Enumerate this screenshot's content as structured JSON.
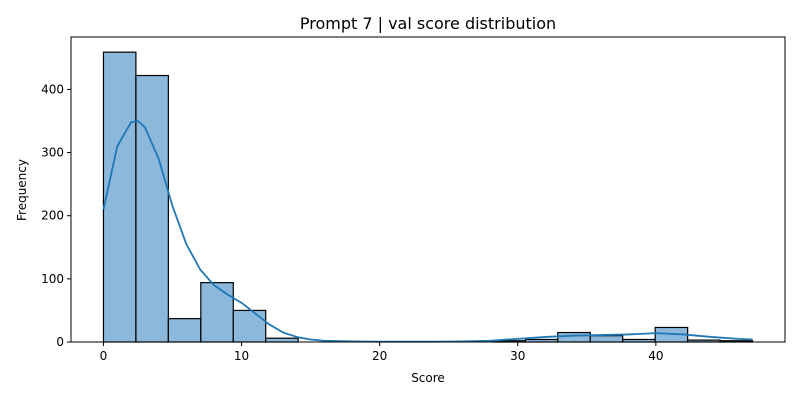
{
  "chart_data": {
    "type": "bar",
    "title": "Prompt 7 | val score distribution",
    "xlabel": "Score",
    "ylabel": "Frequency",
    "xlim": [
      -2.35,
      49.35
    ],
    "ylim": [
      0,
      483
    ],
    "x_ticks": [
      0,
      10,
      20,
      30,
      40
    ],
    "y_ticks": [
      0,
      100,
      200,
      300,
      400
    ],
    "bin_width": 2.35,
    "bins": [
      {
        "start": 0.0,
        "end": 2.35,
        "count": 459
      },
      {
        "start": 2.35,
        "end": 4.7,
        "count": 422
      },
      {
        "start": 4.7,
        "end": 7.05,
        "count": 37
      },
      {
        "start": 7.05,
        "end": 9.4,
        "count": 94
      },
      {
        "start": 9.4,
        "end": 11.75,
        "count": 50
      },
      {
        "start": 11.75,
        "end": 14.1,
        "count": 6
      },
      {
        "start": 14.1,
        "end": 16.45,
        "count": 0
      },
      {
        "start": 16.45,
        "end": 18.8,
        "count": 0
      },
      {
        "start": 18.8,
        "end": 21.15,
        "count": 0
      },
      {
        "start": 21.15,
        "end": 23.5,
        "count": 0
      },
      {
        "start": 23.5,
        "end": 25.85,
        "count": 0
      },
      {
        "start": 25.85,
        "end": 28.2,
        "count": 0
      },
      {
        "start": 28.2,
        "end": 30.55,
        "count": 2
      },
      {
        "start": 30.55,
        "end": 32.9,
        "count": 4
      },
      {
        "start": 32.9,
        "end": 35.25,
        "count": 15
      },
      {
        "start": 35.25,
        "end": 37.6,
        "count": 10
      },
      {
        "start": 37.6,
        "end": 39.95,
        "count": 4
      },
      {
        "start": 39.95,
        "end": 42.3,
        "count": 23
      },
      {
        "start": 42.3,
        "end": 44.65,
        "count": 3
      },
      {
        "start": 44.65,
        "end": 47.0,
        "count": 2
      }
    ],
    "kde": {
      "x": [
        0,
        1,
        2,
        2.5,
        3,
        4,
        5,
        6,
        7,
        8,
        9,
        10,
        11,
        12,
        13,
        14,
        15,
        16,
        18,
        20,
        22,
        24,
        26,
        28,
        30,
        32,
        34,
        36,
        38,
        40,
        42,
        44,
        46,
        47
      ],
      "y": [
        210,
        310,
        348,
        350,
        340,
        290,
        215,
        155,
        115,
        90,
        75,
        62,
        45,
        28,
        15,
        8,
        4,
        2,
        1,
        0.5,
        0.5,
        0.5,
        1,
        2,
        5,
        8,
        10,
        11,
        12,
        14,
        12,
        8,
        5,
        4
      ]
    },
    "colors": {
      "bar_fill": "#8cb8dc",
      "bar_edge": "#000000",
      "kde_line": "#1f77b4"
    },
    "grid": false,
    "legend": "none"
  }
}
